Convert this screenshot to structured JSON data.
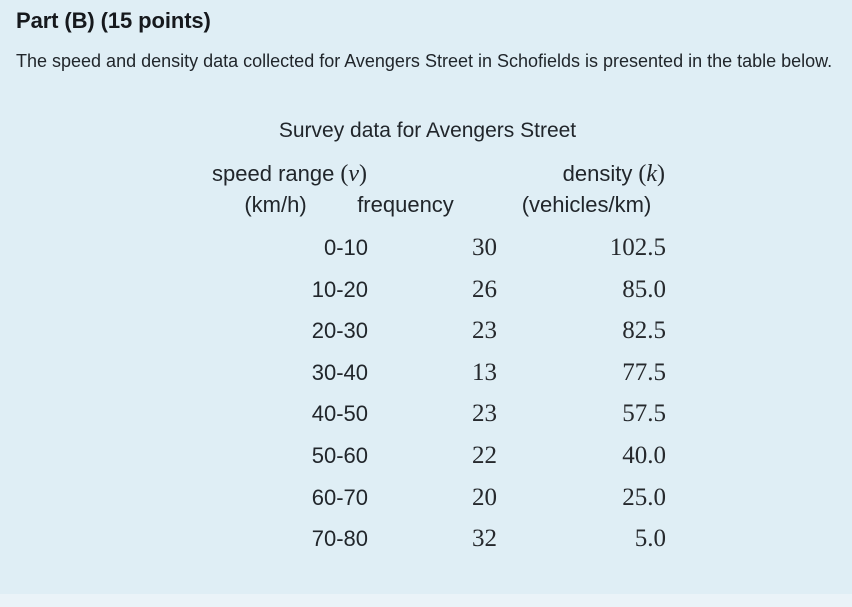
{
  "colors": {
    "background": "#dfeef5",
    "bottom_strip": "#eaf3f8",
    "text": "#21262b",
    "heading_text": "#16191d"
  },
  "heading": "Part (B) (15 points)",
  "intro": "The speed and density data collected for Avengers Street in Schofields is presented in the table below.",
  "table": {
    "title": "Survey data for Avengers Street",
    "headers": {
      "speed": {
        "label": "speed range",
        "paren_open": "(",
        "symbol": "v",
        "paren_close": ")",
        "unit": "(km/h)"
      },
      "frequency": {
        "label": "frequency"
      },
      "density": {
        "label": "density",
        "paren_open": "(",
        "symbol": "k",
        "paren_close": ")",
        "unit": "(vehicles/km)"
      }
    },
    "rows": [
      {
        "speed_range": "0-10",
        "frequency": "30",
        "density": "102.5"
      },
      {
        "speed_range": "10-20",
        "frequency": "26",
        "density": "85.0"
      },
      {
        "speed_range": "20-30",
        "frequency": "23",
        "density": "82.5"
      },
      {
        "speed_range": "30-40",
        "frequency": "13",
        "density": "77.5"
      },
      {
        "speed_range": "40-50",
        "frequency": "23",
        "density": "57.5"
      },
      {
        "speed_range": "50-60",
        "frequency": "22",
        "density": "40.0"
      },
      {
        "speed_range": "60-70",
        "frequency": "20",
        "density": "25.0"
      },
      {
        "speed_range": "70-80",
        "frequency": "32",
        "density": "5.0"
      }
    ]
  },
  "chart_data": {
    "type": "table",
    "title": "Survey data for Avengers Street",
    "columns": [
      "speed range (v) (km/h)",
      "frequency",
      "density (k) (vehicles/km)"
    ],
    "rows": [
      [
        "0-10",
        30,
        102.5
      ],
      [
        "10-20",
        26,
        85.0
      ],
      [
        "20-30",
        23,
        82.5
      ],
      [
        "30-40",
        13,
        77.5
      ],
      [
        "40-50",
        23,
        57.5
      ],
      [
        "50-60",
        22,
        40.0
      ],
      [
        "60-70",
        20,
        25.0
      ],
      [
        "70-80",
        32,
        5.0
      ]
    ]
  }
}
